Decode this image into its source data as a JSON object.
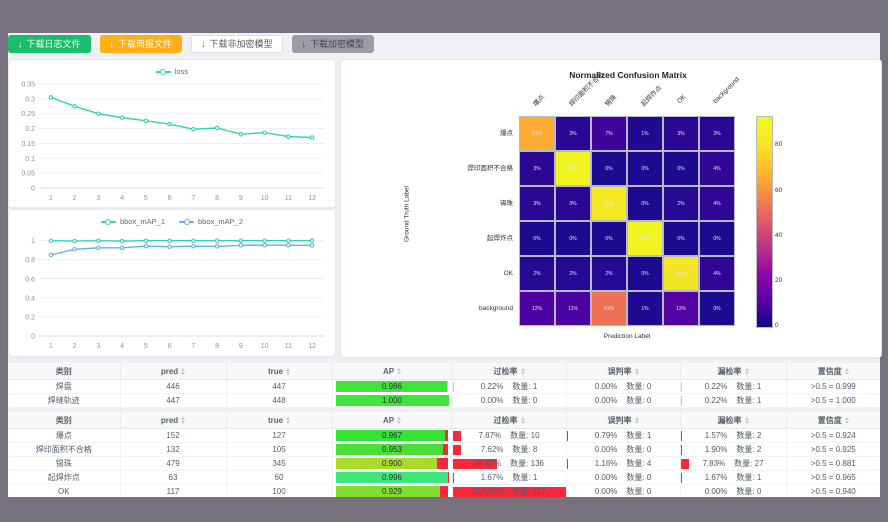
{
  "toolbar": {
    "buttons": [
      {
        "id": "download-log",
        "label": "下载日志文件",
        "variant": "success"
      },
      {
        "id": "download-report",
        "label": "下载简报文件",
        "variant": "warning"
      },
      {
        "id": "download-plain-model",
        "label": "下载非加密模型",
        "variant": "default"
      },
      {
        "id": "download-encrypted-model",
        "label": "下载加密模型",
        "variant": "disabled"
      }
    ]
  },
  "chart_data": [
    {
      "type": "line",
      "title": "loss",
      "legend_position": "top",
      "grid": true,
      "x": [
        1,
        2,
        3,
        4,
        5,
        6,
        7,
        8,
        9,
        10,
        11,
        12
      ],
      "ylim": [
        0,
        0.35
      ],
      "yticks": [
        0,
        0.05,
        0.1,
        0.15,
        0.2,
        0.25,
        0.3,
        0.35
      ],
      "series": [
        {
          "name": "loss",
          "color": "#2fd3b2",
          "values": [
            0.305,
            0.275,
            0.25,
            0.237,
            0.226,
            0.215,
            0.198,
            0.202,
            0.181,
            0.186,
            0.173,
            0.17
          ]
        }
      ]
    },
    {
      "type": "line",
      "title": "",
      "legend_position": "top",
      "grid": true,
      "x": [
        1,
        2,
        3,
        4,
        5,
        6,
        7,
        8,
        9,
        10,
        11,
        12
      ],
      "ylim": [
        0,
        1.07
      ],
      "yticks": [
        0,
        0.2,
        0.4,
        0.6,
        0.8,
        1
      ],
      "series": [
        {
          "name": "bbox_mAP_1",
          "color": "#2fd3b2",
          "values": [
            1,
            0.995,
            1,
            0.995,
            1,
            1,
            1,
            1,
            1,
            1,
            1,
            1
          ]
        },
        {
          "name": "bbox_mAP_2",
          "color": "#62aef5",
          "values": [
            0.85,
            0.91,
            0.925,
            0.925,
            0.942,
            0.937,
            0.942,
            0.94,
            0.951,
            0.953,
            0.953,
            0.95
          ]
        }
      ]
    },
    {
      "type": "heatmap",
      "title": "Normalized Confusion Matrix",
      "xlabel": "Prediction Label",
      "ylabel": "Ground Truth Label",
      "colormap": "plasma",
      "classes": [
        "爆点",
        "焊印面积不合格",
        "锡珠",
        "起焊炸点",
        "OK",
        "background"
      ],
      "values_percent": [
        [
          81,
          3,
          7,
          1,
          3,
          3
        ],
        [
          3,
          93,
          0,
          0,
          0,
          4
        ],
        [
          3,
          3,
          90,
          0,
          2,
          4
        ],
        [
          0,
          0,
          0,
          93,
          0,
          0
        ],
        [
          2,
          2,
          2,
          0,
          85,
          4
        ],
        [
          12,
          11,
          61,
          1,
          13,
          0
        ]
      ],
      "vmax": 93,
      "colorbar_ticks": [
        0,
        20,
        40,
        60,
        80
      ],
      "palette": {
        "0": "#1c0b8e",
        "1": "#200a90",
        "2": "#250992",
        "3": "#2a0894",
        "4": "#300795",
        "7": "#3d059a",
        "11": "#4a03a0",
        "12": "#4e02a1",
        "13": "#5201a3",
        "61": "#ee7156",
        "81": "#fcab33",
        "85": "#f3e424",
        "90": "#f3e823",
        "93": "#f1f321"
      }
    }
  ],
  "tables": {
    "count_label": "数量:",
    "headers": [
      {
        "key": "cls",
        "label": "类别",
        "sortable": false
      },
      {
        "key": "pred",
        "label": "pred",
        "sortable": true
      },
      {
        "key": "true",
        "label": "true",
        "sortable": true
      },
      {
        "key": "ap",
        "label": "AP",
        "sortable": true
      },
      {
        "key": "over",
        "label": "过检率",
        "sortable": true
      },
      {
        "key": "mis",
        "label": "误判率",
        "sortable": true
      },
      {
        "key": "miss",
        "label": "漏检率",
        "sortable": true
      },
      {
        "key": "conf",
        "label": "置信度",
        "sortable": true
      }
    ],
    "groups": [
      {
        "bar_color": "#ffb0c8",
        "rows": [
          {
            "cls": "焊盘",
            "pred": "446",
            "true": "447",
            "ap": {
              "value": "0.986",
              "pct": 98.6,
              "color": "#3fe33b"
            },
            "over": {
              "pct": "0.22%",
              "count": "1",
              "bar": 0.22
            },
            "mis": {
              "pct": "0.00%",
              "count": "0",
              "bar": 0
            },
            "miss": {
              "pct": "0.22%",
              "count": "1",
              "bar": 0.22
            },
            "conf": ">0.5 = 0.999"
          },
          {
            "cls": "焊缝轨迹",
            "pred": "447",
            "true": "448",
            "ap": {
              "value": "1.000",
              "pct": 100,
              "color": "#3fe33b"
            },
            "over": {
              "pct": "0.00%",
              "count": "0",
              "bar": 0
            },
            "mis": {
              "pct": "0.00%",
              "count": "0",
              "bar": 0
            },
            "miss": {
              "pct": "0.22%",
              "count": "1",
              "bar": 0.22
            },
            "conf": ">0.5 = 1.000"
          }
        ]
      },
      {
        "bar_color": "#f8283a",
        "rows": [
          {
            "cls": "爆点",
            "pred": "152",
            "true": "127",
            "ap": {
              "value": "0.967",
              "pct": 96.7,
              "color": "#35e235"
            },
            "over": {
              "pct": "7.87%",
              "count": "10",
              "bar": 7.87
            },
            "mis": {
              "pct": "0.79%",
              "count": "1",
              "bar": 0.79
            },
            "miss": {
              "pct": "1.57%",
              "count": "2",
              "bar": 1.57
            },
            "conf": ">0.5 = 0.924"
          },
          {
            "cls": "焊印面积不合格",
            "pred": "132",
            "true": "105",
            "ap": {
              "value": "0.953",
              "pct": 95.3,
              "color": "#4ade39"
            },
            "over": {
              "pct": "7.62%",
              "count": "8",
              "bar": 7.62
            },
            "mis": {
              "pct": "0.00%",
              "count": "0",
              "bar": 0
            },
            "miss": {
              "pct": "1.90%",
              "count": "2",
              "bar": 1.9
            },
            "conf": ">0.5 = 0.925"
          },
          {
            "cls": "锡珠",
            "pred": "479",
            "true": "345",
            "ap": {
              "value": "0.900",
              "pct": 90,
              "color": "#a6db2a"
            },
            "over": {
              "pct": "39.42%",
              "count": "136",
              "bar": 39.42
            },
            "mis": {
              "pct": "1.16%",
              "count": "4",
              "bar": 1.16
            },
            "miss": {
              "pct": "7.83%",
              "count": "27",
              "bar": 7.83
            },
            "conf": ">0.5 = 0.881"
          },
          {
            "cls": "起焊炸点",
            "pred": "63",
            "true": "60",
            "ap": {
              "value": "0.996",
              "pct": 99.6,
              "color": "#3ce87d"
            },
            "over": {
              "pct": "1.67%",
              "count": "1",
              "bar": 1.67
            },
            "mis": {
              "pct": "0.00%",
              "count": "0",
              "bar": 0
            },
            "miss": {
              "pct": "1.67%",
              "count": "1",
              "bar": 1.67
            },
            "conf": ">0.5 = 0.965"
          },
          {
            "cls": "OK",
            "pred": "117",
            "true": "100",
            "ap": {
              "value": "0.929",
              "pct": 92.9,
              "color": "#81dd30"
            },
            "over": {
              "pct": "117.00%",
              "count": "117",
              "bar": 100
            },
            "mis": {
              "pct": "0.00%",
              "count": "0",
              "bar": 0
            },
            "miss": {
              "pct": "0.00%",
              "count": "0",
              "bar": 0
            },
            "conf": ">0.5 = 0.940"
          }
        ]
      }
    ]
  }
}
